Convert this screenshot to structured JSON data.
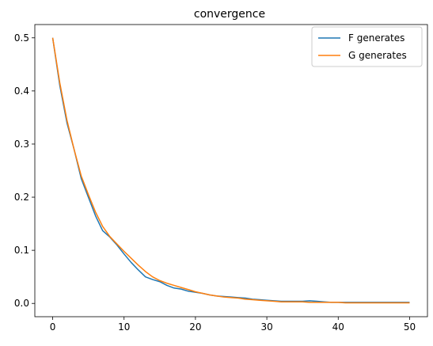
{
  "chart_data": {
    "type": "line",
    "title": "convergence",
    "xlabel": "",
    "ylabel": "",
    "xlim": [
      -2.5,
      52.5
    ],
    "ylim": [
      -0.025,
      0.525
    ],
    "x_ticks": [
      0,
      10,
      20,
      30,
      40,
      50
    ],
    "y_ticks": [
      0.0,
      0.1,
      0.2,
      0.3,
      0.4,
      0.5
    ],
    "x_tick_labels": [
      "0",
      "10",
      "20",
      "30",
      "40",
      "50"
    ],
    "y_tick_labels": [
      "0.0",
      "0.1",
      "0.2",
      "0.3",
      "0.4",
      "0.5"
    ],
    "grid": false,
    "legend_position": "top-right",
    "x": [
      0,
      1,
      2,
      3,
      4,
      5,
      6,
      7,
      8,
      9,
      10,
      11,
      12,
      13,
      14,
      15,
      16,
      17,
      18,
      19,
      20,
      21,
      22,
      23,
      24,
      25,
      26,
      27,
      28,
      29,
      30,
      31,
      32,
      33,
      34,
      35,
      36,
      37,
      38,
      39,
      40,
      41,
      42,
      43,
      44,
      45,
      46,
      47,
      48,
      49,
      50
    ],
    "series": [
      {
        "name": "F generates",
        "color": "#1f77b4",
        "values": [
          0.5,
          0.41,
          0.34,
          0.29,
          0.235,
          0.2,
          0.165,
          0.137,
          0.125,
          0.11,
          0.093,
          0.077,
          0.063,
          0.05,
          0.045,
          0.041,
          0.034,
          0.029,
          0.027,
          0.023,
          0.021,
          0.019,
          0.016,
          0.014,
          0.013,
          0.012,
          0.011,
          0.01,
          0.008,
          0.007,
          0.006,
          0.005,
          0.004,
          0.004,
          0.004,
          0.004,
          0.005,
          0.004,
          0.003,
          0.002,
          0.002,
          0.002,
          0.002,
          0.002,
          0.002,
          0.002,
          0.002,
          0.002,
          0.002,
          0.002,
          0.002
        ]
      },
      {
        "name": "G generates",
        "color": "#ff7f0e",
        "values": [
          0.5,
          0.415,
          0.345,
          0.29,
          0.24,
          0.205,
          0.172,
          0.145,
          0.126,
          0.112,
          0.098,
          0.085,
          0.072,
          0.06,
          0.05,
          0.043,
          0.038,
          0.034,
          0.03,
          0.026,
          0.022,
          0.019,
          0.016,
          0.014,
          0.012,
          0.011,
          0.01,
          0.008,
          0.007,
          0.006,
          0.005,
          0.004,
          0.003,
          0.003,
          0.003,
          0.003,
          0.002,
          0.002,
          0.002,
          0.002,
          0.002,
          0.001,
          0.001,
          0.001,
          0.001,
          0.001,
          0.001,
          0.001,
          0.001,
          0.001,
          0.001
        ]
      }
    ]
  }
}
